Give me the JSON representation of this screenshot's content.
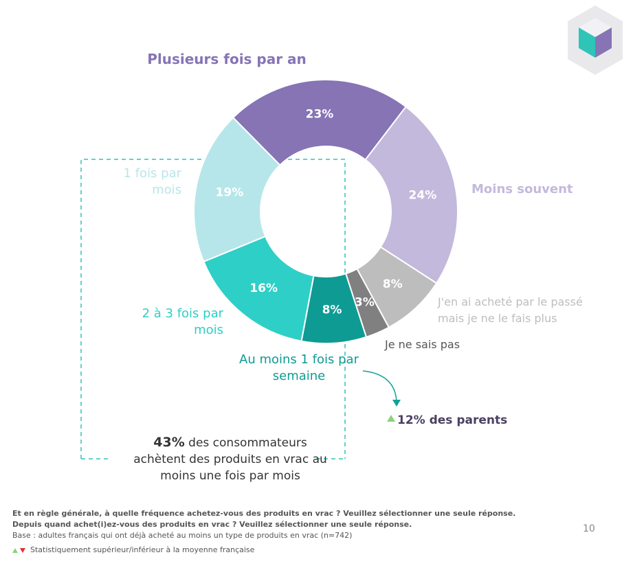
{
  "chart_data": {
    "type": "donut",
    "categories": [
      "Plusieurs fois par an",
      "Moins souvent",
      "J'en ai acheté par le passé mais je ne le fais plus",
      "Je ne sais pas",
      "Au moins 1 fois par semaine",
      "2 à 3 fois par mois",
      "1 fois par mois"
    ],
    "values": [
      23,
      24,
      8,
      3,
      8,
      16,
      19
    ],
    "value_labels": [
      "23%",
      "24%",
      "8%",
      "3%",
      "8%",
      "16%",
      "19%"
    ],
    "colors": [
      "#8674b5",
      "#c3b9dc",
      "#bdbdbd",
      "#808080",
      "#0e9b93",
      "#2ecfc6",
      "#b7e6ea"
    ]
  },
  "annotations": {
    "summary_highlight": "43%",
    "summary_text": "des consommateurs achètent des produits en vrac au moins une fois par mois",
    "parents_note": "12% des parents"
  },
  "footnotes": {
    "question_1": "Et en règle générale, à quelle fréquence achetez-vous des produits en vrac ? Veuillez sélectionner une seule réponse.",
    "question_2": "Depuis quand achet(i)ez-vous des produits en vrac ? Veuillez sélectionner une seule réponse.",
    "base": "Base : adultes français qui ont déjà acheté au moins un type de produits en vrac (n=742)",
    "legend_note": "Statistiquement supérieur/inférieur à la moyenne française"
  },
  "page_number": "10"
}
